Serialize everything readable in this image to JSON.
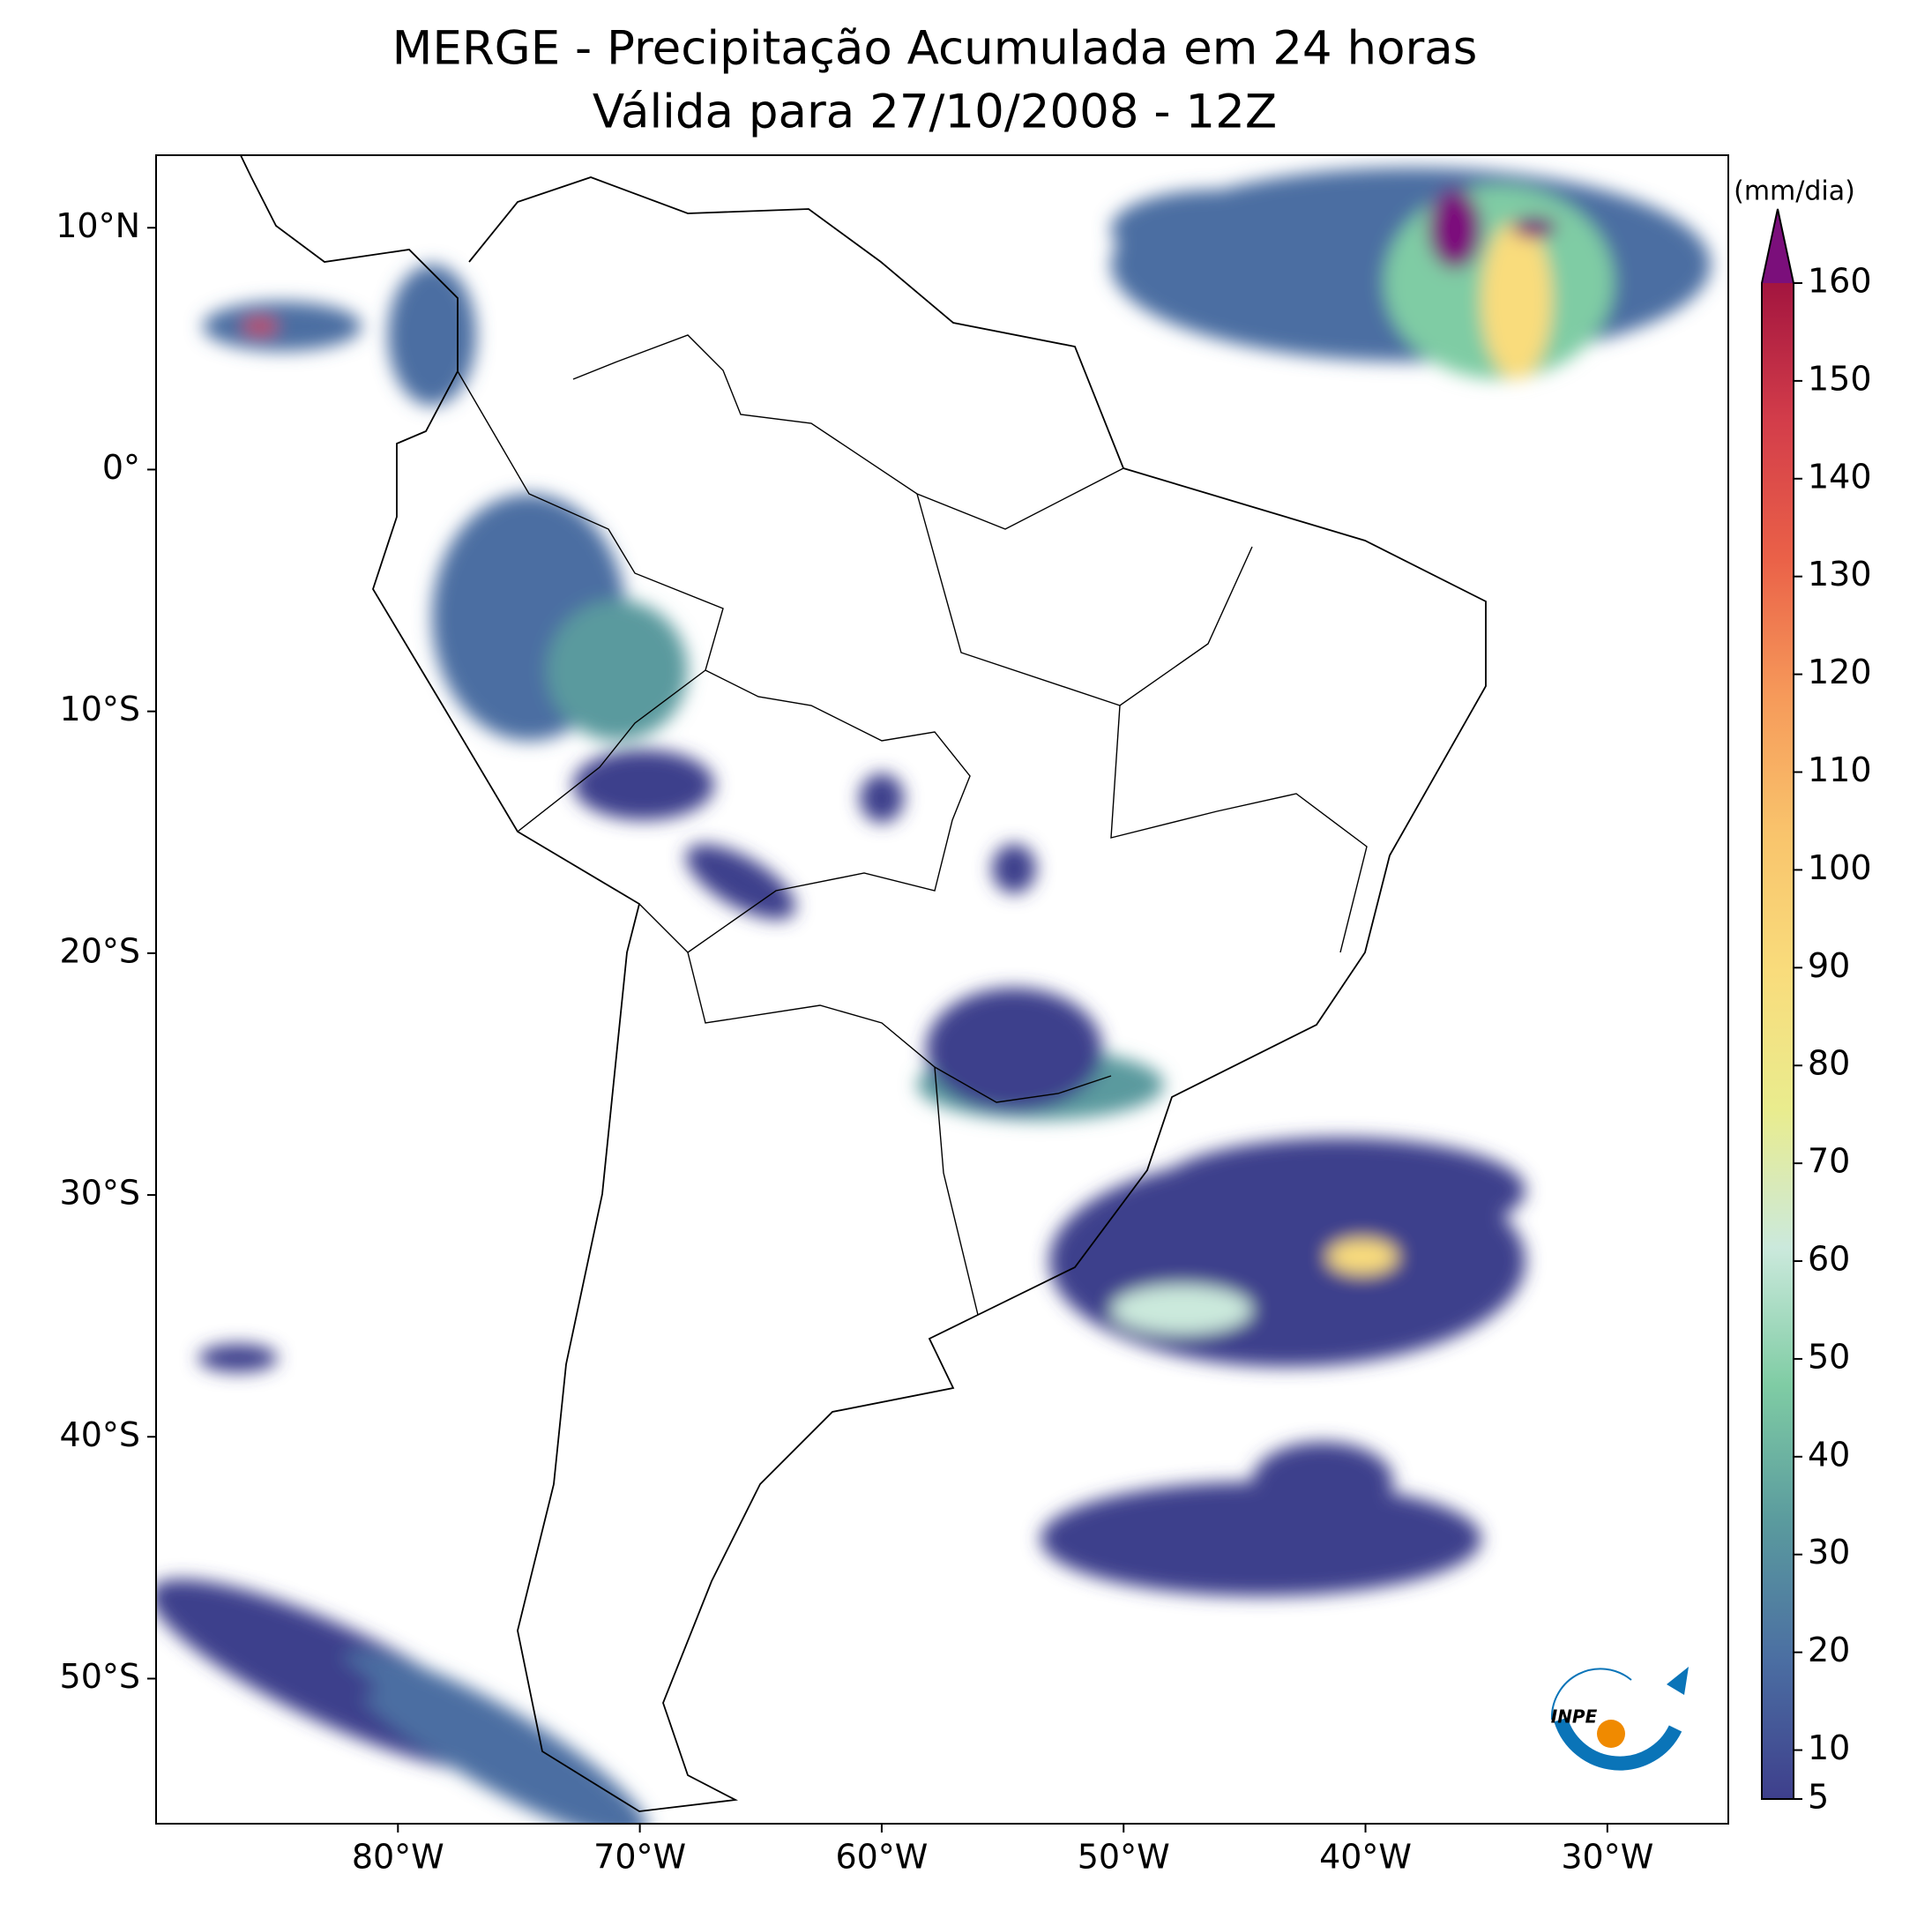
{
  "title": [
    "MERGE - Precipitação Acumulada em 24 horas",
    "Válida para 27/10/2008 - 12Z"
  ],
  "map": {
    "xlim": [
      -90,
      -25
    ],
    "ylim": [
      -56,
      13
    ],
    "xticks": [
      {
        "value": -80,
        "label": "80°W"
      },
      {
        "value": -70,
        "label": "70°W"
      },
      {
        "value": -60,
        "label": "60°W"
      },
      {
        "value": -50,
        "label": "50°W"
      },
      {
        "value": -40,
        "label": "40°W"
      },
      {
        "value": -30,
        "label": "30°W"
      }
    ],
    "yticks": [
      {
        "value": 10,
        "label": "10°N"
      },
      {
        "value": 0,
        "label": "0°"
      },
      {
        "value": -10,
        "label": "10°S"
      },
      {
        "value": -20,
        "label": "20°S"
      },
      {
        "value": -30,
        "label": "30°S"
      },
      {
        "value": -40,
        "label": "40°S"
      },
      {
        "value": -50,
        "label": "50°S"
      }
    ]
  },
  "colorbar": {
    "label": "(mm/dia)",
    "lim": [
      5,
      160
    ],
    "ticks": [
      5,
      10,
      20,
      30,
      40,
      50,
      60,
      70,
      80,
      90,
      100,
      110,
      120,
      130,
      140,
      150,
      160
    ],
    "colors": [
      "#3e3f8c",
      "#4b6ea2",
      "#5a9a9e",
      "#7fcca4",
      "#cbe9dc",
      "#e9ec8e",
      "#f9dc7c",
      "#f9c46c",
      "#f69a5a",
      "#ea6148",
      "#d33d4a",
      "#a3153f"
    ],
    "extend_color": "#7b0f7b"
  },
  "logo": "INPE"
}
